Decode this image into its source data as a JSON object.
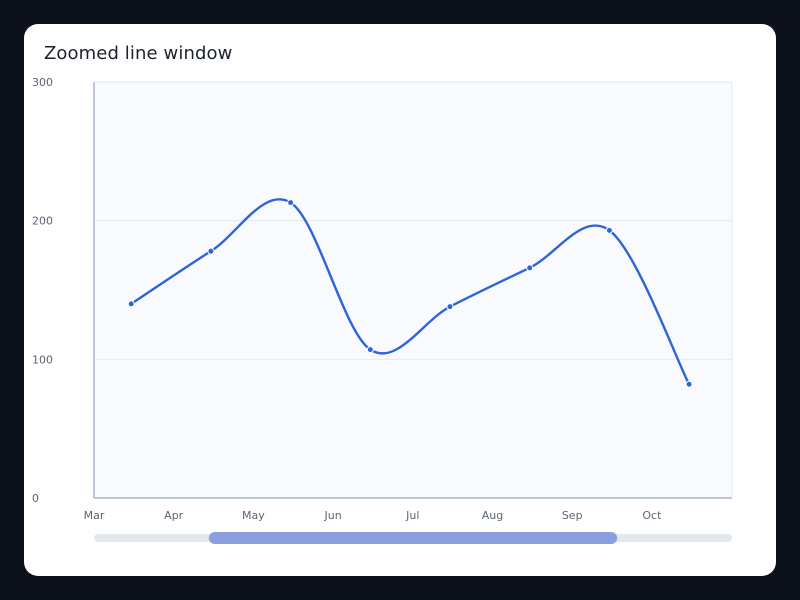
{
  "chart_data": {
    "type": "line",
    "title": "Zoomed line window",
    "xlabel": "",
    "ylabel": "",
    "categories": [
      "Mar",
      "Apr",
      "May",
      "Jun",
      "Jul",
      "Aug",
      "Sep",
      "Oct"
    ],
    "series": [
      {
        "color": "#2f64d8",
        "points": [
          {
            "x": "Mar 15",
            "y": 140
          },
          {
            "x": "Apr 15",
            "y": 178
          },
          {
            "x": "May 15",
            "y": 213
          },
          {
            "x": "Jun 15",
            "y": 107
          },
          {
            "x": "Jul 15",
            "y": 138
          },
          {
            "x": "Aug 15",
            "y": 166
          },
          {
            "x": "Sep 15",
            "y": 193
          },
          {
            "x": "Oct 15",
            "y": 82
          }
        ]
      }
    ],
    "ylim": [
      0,
      300
    ],
    "yticks": [
      0,
      100,
      200,
      300
    ],
    "grid": true,
    "colors": {
      "plot_background": "#f8fafd",
      "grid": "#e3e8ef",
      "axis": "#a9b6cc",
      "line": "#2f64d8",
      "scrollbar_track": "#e3e8ef",
      "scrollbar_thumb": "#8a9fdf"
    },
    "zoom_window": {
      "start_fraction": 0.18,
      "end_fraction": 0.82
    }
  }
}
